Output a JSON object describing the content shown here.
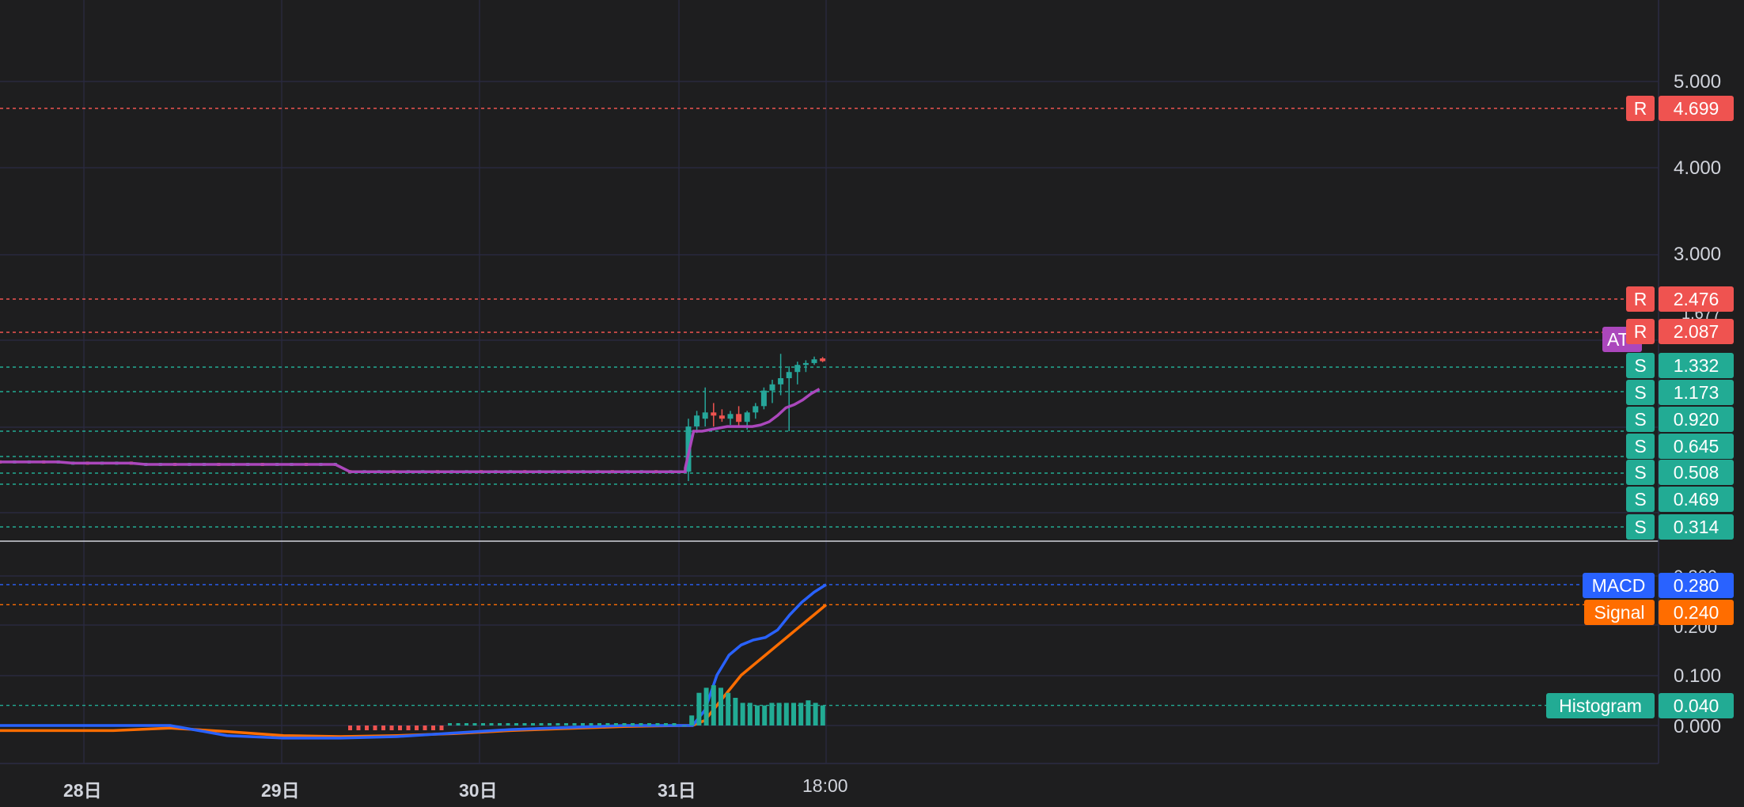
{
  "colors": {
    "background": "#1e1e1f",
    "grid": "#2b2b43",
    "up": "#26a69a",
    "down": "#ef5350",
    "resistance": "#ef5350",
    "support": "#22ab94",
    "ma": "#ab47bc",
    "macd": "#2962ff",
    "signal": "#ff6d00",
    "histogram": "#22ab94"
  },
  "time_axis": {
    "labels": [
      "28日",
      "29日",
      "30日",
      "31日",
      "18:00"
    ]
  },
  "price_panel": {
    "ticks": [
      "5.000",
      "4.000",
      "3.000"
    ],
    "obscured_tick": "1.677",
    "partial_tag": "AT",
    "levels": [
      {
        "kind": "R",
        "value": "4.699"
      },
      {
        "kind": "R",
        "value": "2.476"
      },
      {
        "kind": "R",
        "value": "2.087"
      },
      {
        "kind": "S",
        "value": "1.332"
      },
      {
        "kind": "S",
        "value": "1.173"
      },
      {
        "kind": "S",
        "value": "0.920"
      },
      {
        "kind": "S",
        "value": "0.645"
      },
      {
        "kind": "S",
        "value": "0.508"
      },
      {
        "kind": "S",
        "value": "0.469"
      },
      {
        "kind": "S",
        "value": "0.314"
      }
    ]
  },
  "macd_panel": {
    "ticks": [
      "0.100",
      "0.000"
    ],
    "obscured_ticks": [
      "0.300",
      "0.200"
    ],
    "macd": {
      "name": "MACD",
      "value": "0.280"
    },
    "signal": {
      "name": "Signal",
      "value": "0.240"
    },
    "histogram": {
      "name": "Histogram",
      "value": "0.040"
    }
  },
  "chart_data": {
    "type": "candlestick",
    "price": {
      "closes_early": [
        0.6,
        0.6,
        0.6,
        0.6,
        0.6,
        0.59,
        0.59,
        0.59,
        0.59,
        0.59,
        0.58,
        0.58,
        0.58,
        0.58,
        0.58,
        0.58,
        0.58,
        0.58,
        0.58,
        0.58,
        0.58,
        0.58,
        0.58,
        0.58,
        0.52,
        0.52,
        0.52,
        0.52,
        0.52,
        0.52,
        0.52,
        0.52,
        0.52,
        0.52,
        0.52,
        0.52,
        0.52,
        0.52,
        0.52,
        0.52,
        0.52,
        0.52,
        0.52,
        0.52,
        0.52,
        0.52,
        0.52,
        0.52
      ],
      "candles_31": [
        {
          "o": 0.52,
          "h": 1.0,
          "l": 0.48,
          "c": 0.95
        },
        {
          "o": 0.95,
          "h": 1.05,
          "l": 0.9,
          "c": 1.02
        },
        {
          "o": 1.0,
          "h": 1.2,
          "l": 0.95,
          "c": 1.04
        },
        {
          "o": 1.04,
          "h": 1.1,
          "l": 0.95,
          "c": 1.02
        },
        {
          "o": 1.02,
          "h": 1.06,
          "l": 0.98,
          "c": 1.0
        },
        {
          "o": 1.0,
          "h": 1.05,
          "l": 0.96,
          "c": 1.03
        },
        {
          "o": 1.03,
          "h": 1.08,
          "l": 0.95,
          "c": 0.98
        },
        {
          "o": 0.98,
          "h": 1.05,
          "l": 0.93,
          "c": 1.04
        },
        {
          "o": 1.04,
          "h": 1.1,
          "l": 1.0,
          "c": 1.08
        },
        {
          "o": 1.08,
          "h": 1.2,
          "l": 1.06,
          "c": 1.18
        },
        {
          "o": 1.18,
          "h": 1.25,
          "l": 1.1,
          "c": 1.22
        },
        {
          "o": 1.22,
          "h": 1.62,
          "l": 1.15,
          "c": 1.26
        },
        {
          "o": 1.26,
          "h": 1.35,
          "l": 0.92,
          "c": 1.3
        },
        {
          "o": 1.3,
          "h": 1.45,
          "l": 1.22,
          "c": 1.38
        },
        {
          "o": 1.38,
          "h": 1.48,
          "l": 1.3,
          "c": 1.42
        },
        {
          "o": 1.42,
          "h": 1.56,
          "l": 1.38,
          "c": 1.5
        },
        {
          "o": 1.52,
          "h": 1.55,
          "l": 1.44,
          "c": 1.46
        }
      ],
      "ma": [
        0.55,
        0.92,
        0.92,
        0.93,
        0.94,
        0.95,
        0.95,
        0.95,
        0.95,
        0.96,
        0.98,
        1.02,
        1.07,
        1.09,
        1.12,
        1.16,
        1.19
      ]
    },
    "macd": {
      "macd": [
        0.0,
        0.0,
        0.0,
        0.0,
        -0.02,
        -0.025,
        -0.025,
        -0.022,
        -0.015,
        -0.008,
        -0.004,
        0.0,
        0.0,
        0.0,
        0.03,
        0.1,
        0.14,
        0.16,
        0.17,
        0.175,
        0.19,
        0.22,
        0.245,
        0.265,
        0.28
      ],
      "signal": [
        -0.01,
        -0.01,
        -0.01,
        -0.005,
        -0.012,
        -0.02,
        -0.022,
        -0.02,
        -0.016,
        -0.01,
        -0.006,
        -0.002,
        0.0,
        0.0,
        0.01,
        0.04,
        0.07,
        0.1,
        0.12,
        0.14,
        0.16,
        0.18,
        0.2,
        0.22,
        0.24
      ],
      "histogram": [
        0.0,
        0.02,
        0.065,
        0.075,
        0.08,
        0.075,
        0.065,
        0.055,
        0.045,
        0.045,
        0.04,
        0.04,
        0.045,
        0.045,
        0.045,
        0.045,
        0.045,
        0.05,
        0.045,
        0.04
      ]
    }
  }
}
